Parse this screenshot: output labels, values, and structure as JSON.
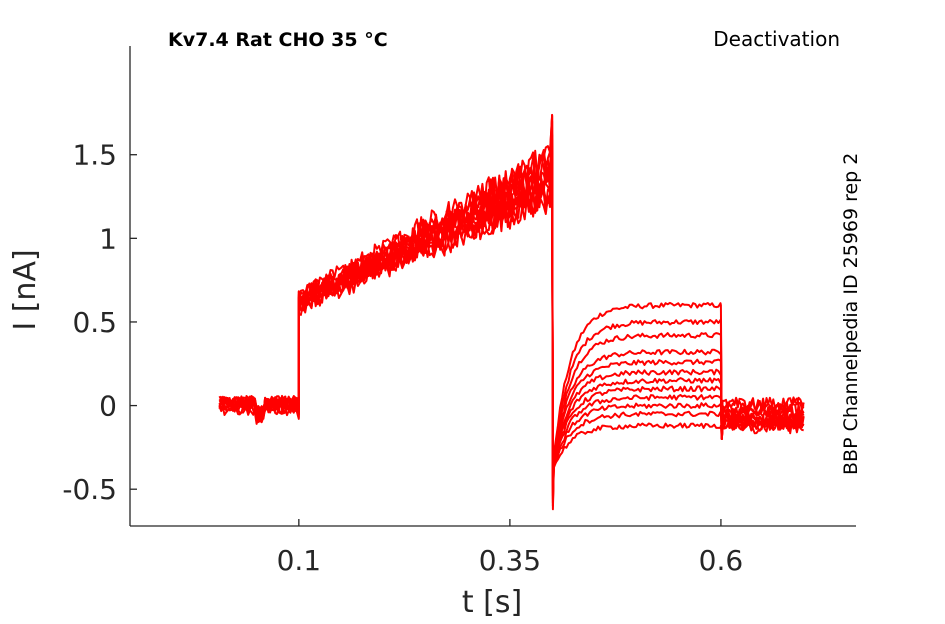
{
  "chart_data": {
    "type": "line",
    "title": "Kv7.4  Rat  CHO  35 °C",
    "protocol": "Deactivation",
    "side_note": "BBP Channelpedia ID 25969 rep 2",
    "xlabel": "t [s]",
    "ylabel": "I [nA]",
    "xlim": [
      -0.1,
      0.76
    ],
    "ylim": [
      -0.72,
      2.15
    ],
    "xticks": [
      0.1,
      0.35,
      0.6
    ],
    "xtick_labels": [
      "0.1",
      "0.35",
      "0.6"
    ],
    "yticks": [
      -0.5,
      0,
      0.5,
      1,
      1.5
    ],
    "ytick_labels": [
      "-0.5",
      "0",
      "0.5",
      "1",
      "1.5"
    ],
    "grid": false,
    "color": "#ff0000",
    "n_traces": 12,
    "segments": {
      "baseline": {
        "t_start": 0.006,
        "t_end": 0.1,
        "current": 0.0
      },
      "activation": {
        "t_start": 0.1,
        "t_end": 0.4,
        "current_start": 0.62,
        "current_end": 1.4
      },
      "tail": {
        "t_start": 0.4,
        "t_end": 0.6,
        "currents": [
          0.6,
          0.5,
          0.42,
          0.32,
          0.26,
          0.2,
          0.15,
          0.1,
          0.05,
          0.0,
          -0.05,
          -0.12
        ]
      },
      "post": {
        "t_start": 0.6,
        "t_end": 0.7,
        "current": -0.05
      }
    }
  }
}
